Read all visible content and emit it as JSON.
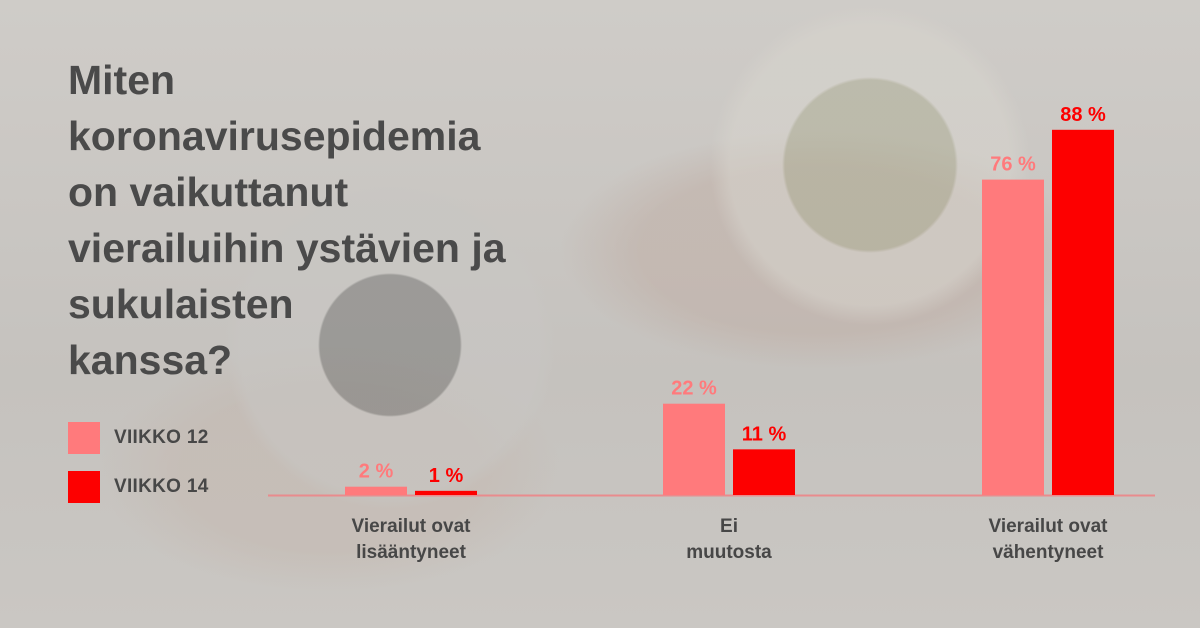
{
  "title": "Miten\nkoronavirusepidemia\non vaikuttanut\nvierailuihin ystävien ja\nsukulaisten\nkanssa?",
  "colors": {
    "series1": "#ff7a7c",
    "series2": "#fd0000",
    "axis": "#e98b8d"
  },
  "chart_data": {
    "type": "bar",
    "title": "Miten koronavirusepidemia on vaikuttanut vierailuihin ystävien ja sukulaisten kanssa?",
    "categories": [
      [
        "Vierailut ovat",
        "lisääntyneet"
      ],
      [
        "Ei",
        "muutosta"
      ],
      [
        "Vierailut ovat",
        "vähentyneet"
      ]
    ],
    "series": [
      {
        "name": "VIIKKO 12",
        "color": "#ff7a7c",
        "values": [
          2,
          22,
          76
        ],
        "labels": [
          "2 %",
          "22 %",
          "76 %"
        ]
      },
      {
        "name": "VIIKKO 14",
        "color": "#fd0000",
        "values": [
          1,
          11,
          88
        ],
        "labels": [
          "1 %",
          "11 %",
          "88 %"
        ]
      }
    ],
    "ylim": [
      0,
      100
    ],
    "legend": "left",
    "grid": false
  }
}
